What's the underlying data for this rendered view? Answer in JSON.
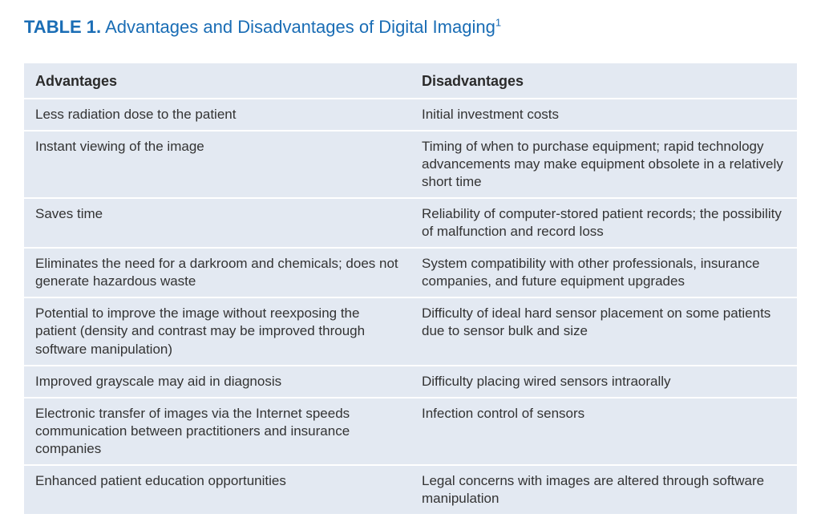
{
  "title": {
    "label": "TABLE 1.",
    "text": "Advantages and Disadvantages of Digital Imaging",
    "super": "1"
  },
  "style": {
    "title_color": "#1a6db5",
    "title_fontsize": 22,
    "title_label_weight": 600,
    "title_text_weight": 400,
    "row_bg": "#e3e9f2",
    "row_border": "#ffffff",
    "body_text_color": "#333333",
    "header_text_color": "#2b2b2b",
    "header_fontsize": 18,
    "body_fontsize": 17,
    "column_widths": [
      "50%",
      "50%"
    ]
  },
  "table": {
    "type": "table",
    "columns": [
      "Advantages",
      "Disadvantages"
    ],
    "rows": [
      [
        "Less radiation dose to the patient",
        "Initial investment costs"
      ],
      [
        "Instant viewing of the image",
        "Timing of when to purchase equipment; rapid technology advancements may make equipment obsolete in a relatively short time"
      ],
      [
        "Saves time",
        "Reliability of computer-stored patient records; the possibility of malfunction and record loss"
      ],
      [
        "Eliminates the need for a darkroom and chemicals; does not generate hazardous waste",
        "System compatibility with other professionals, insurance companies, and future equipment upgrades"
      ],
      [
        "Potential to improve the image without reexposing the patient (density and contrast may be improved through software manipulation)",
        "Difficulty of ideal hard sensor placement on some patients due to sensor bulk and size"
      ],
      [
        "Improved grayscale may aid in diagnosis",
        "Difficulty placing wired sensors intraorally"
      ],
      [
        "Electronic transfer of images via the Internet speeds communication between practitioners and insurance companies",
        "Infection control of sensors"
      ],
      [
        "Enhanced patient education opportunities",
        "Legal concerns with images are altered through software manipulation"
      ]
    ]
  }
}
